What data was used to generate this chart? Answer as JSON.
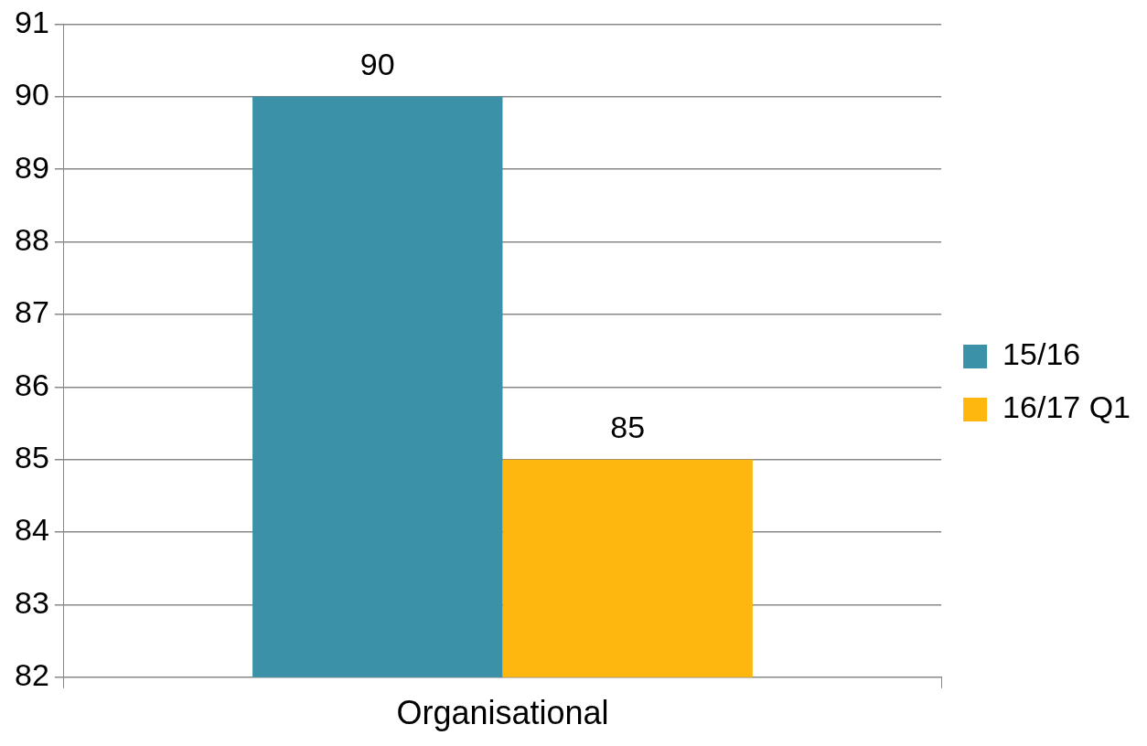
{
  "chart_data": {
    "type": "bar",
    "categories": [
      "Organisational"
    ],
    "series": [
      {
        "name": "15/16",
        "color": "#3a91a8",
        "values": [
          90
        ]
      },
      {
        "name": "16/17 Q1",
        "color": "#fdb70f",
        "values": [
          85
        ]
      }
    ],
    "ylim": [
      82,
      91
    ],
    "yticks": [
      82,
      83,
      84,
      85,
      86,
      87,
      88,
      89,
      90,
      91
    ],
    "grid": "y",
    "legend": "right",
    "data_labels": true
  }
}
